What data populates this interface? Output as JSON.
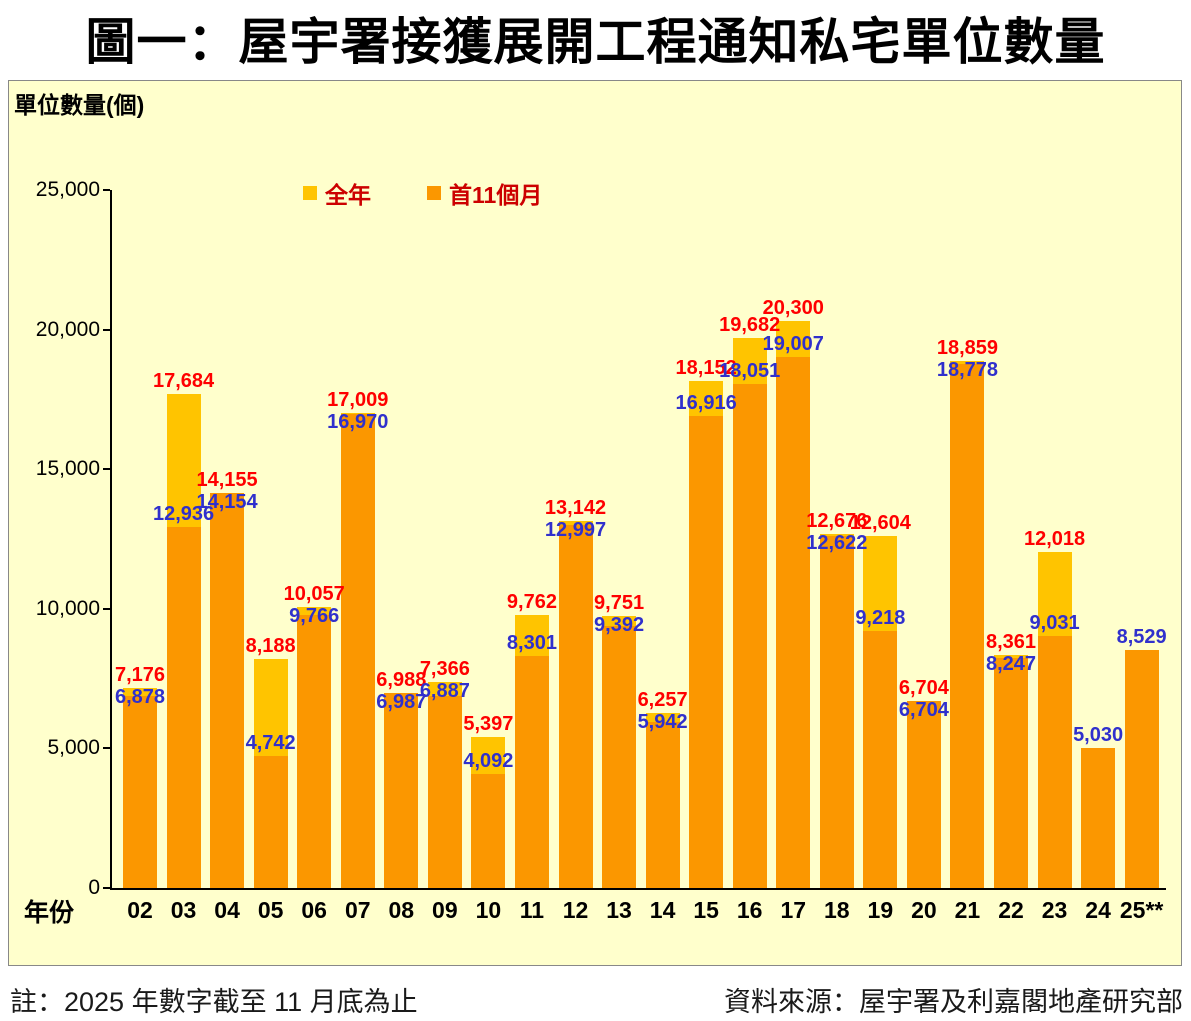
{
  "notes": {
    "left": "註：2025 年數字截至 11 月底為止",
    "right": "資料來源：屋宇署及利嘉閣地產研究部"
  },
  "colors": {
    "plot_bg": "#FFFFCC",
    "axis": "#000000",
    "legend_text": "#CC0000",
    "bar_full_year": "#FFC400",
    "bar_first_11_months": "#FB9700",
    "label_full_year": "#FF0000",
    "label_first_11_months": "#3030CC"
  },
  "chart_data": {
    "type": "bar",
    "title": "圖一：屋宇署接獲展開工程通知私宅單位數量",
    "ylabel": "單位數量(個)",
    "xlabel": "年份",
    "ylim": [
      0,
      25000
    ],
    "yticks": [
      "0",
      "5,000",
      "10,000",
      "15,000",
      "20,000",
      "25,000"
    ],
    "grid": false,
    "legend_position": "top-inside",
    "categories": [
      "02",
      "03",
      "04",
      "05",
      "06",
      "07",
      "08",
      "09",
      "10",
      "11",
      "12",
      "13",
      "14",
      "15",
      "16",
      "17",
      "18",
      "19",
      "20",
      "21",
      "22",
      "23",
      "24",
      "25**"
    ],
    "series": [
      {
        "name": "全年",
        "color": "#FFC400",
        "label_color": "#FF0000",
        "values": [
          7176,
          17684,
          14155,
          8188,
          10057,
          17009,
          6988,
          7366,
          5397,
          9762,
          13142,
          9751,
          6257,
          18152,
          19682,
          20300,
          12676,
          12604,
          6704,
          18859,
          8361,
          12018,
          null,
          null
        ]
      },
      {
        "name": "首11個月",
        "color": "#FB9700",
        "label_color": "#3030CC",
        "values": [
          6878,
          12936,
          14154,
          4742,
          9766,
          16970,
          6987,
          6887,
          4092,
          8301,
          12997,
          9392,
          5942,
          16916,
          18051,
          19007,
          12622,
          9218,
          6704,
          18778,
          8247,
          9031,
          5030,
          8529
        ]
      }
    ]
  }
}
